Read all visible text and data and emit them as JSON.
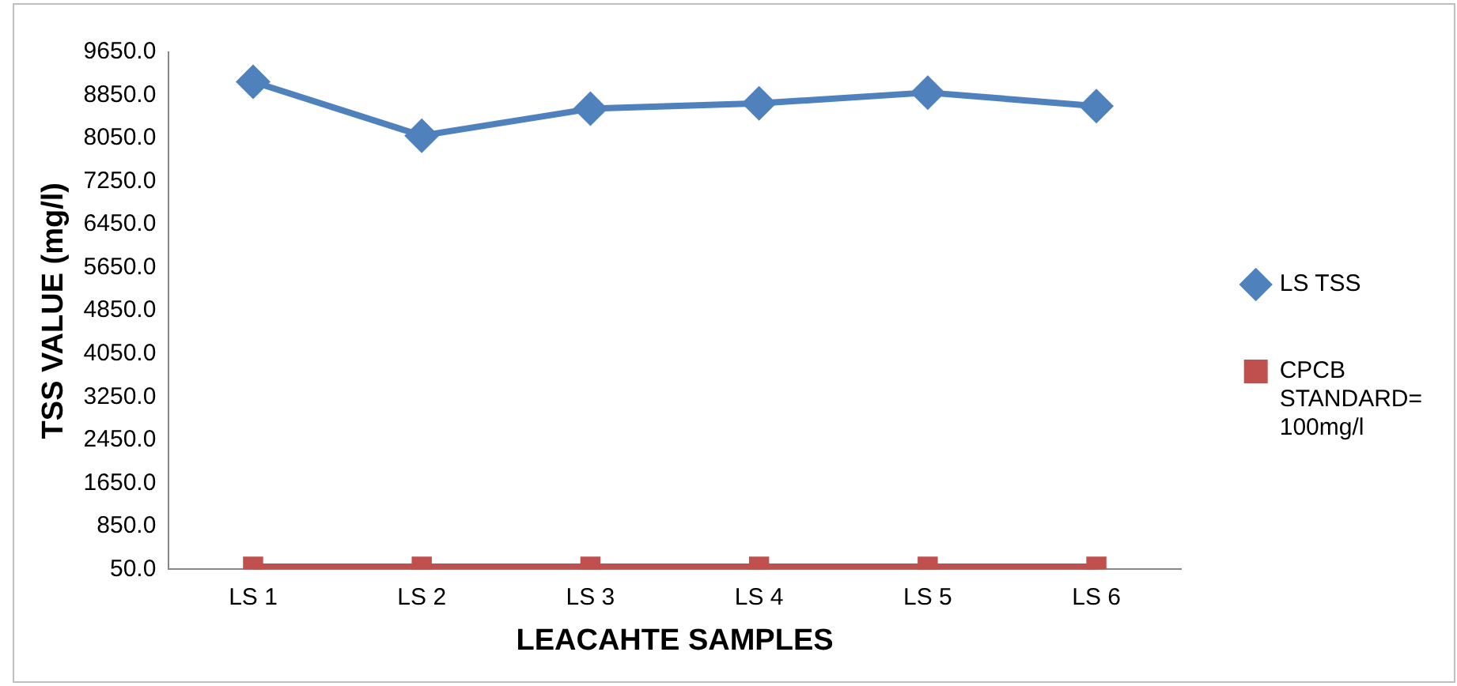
{
  "chart_data": {
    "type": "line",
    "xlabel": "LEACAHTE SAMPLES",
    "ylabel": "TSS VALUE (mg/l)",
    "categories": [
      "LS 1",
      "LS 2",
      "LS 3",
      "LS 4",
      "LS 5",
      "LS 6"
    ],
    "series": [
      {
        "name": "LS TSS",
        "color": "#4f81bd",
        "marker": "diamond",
        "values": [
          9100,
          8100,
          8600,
          8700,
          8900,
          8650
        ]
      },
      {
        "name": "CPCB STANDARD= 100mg/l",
        "color": "#c0504d",
        "marker": "square",
        "values": [
          100,
          100,
          100,
          100,
          100,
          100
        ]
      }
    ],
    "ylim": [
      50,
      9650
    ],
    "yticks": [
      {
        "value": 50,
        "label": "50.0"
      },
      {
        "value": 850,
        "label": "850.0"
      },
      {
        "value": 1650,
        "label": "1650.0"
      },
      {
        "value": 2450,
        "label": "2450.0"
      },
      {
        "value": 3250,
        "label": "3250.0"
      },
      {
        "value": 4050,
        "label": "4050.0"
      },
      {
        "value": 4850,
        "label": "4850.0"
      },
      {
        "value": 5650,
        "label": "5650.0"
      },
      {
        "value": 6450,
        "label": "6450.0"
      },
      {
        "value": 7250,
        "label": "7250.0"
      },
      {
        "value": 8050,
        "label": "8050.0"
      },
      {
        "value": 8850,
        "label": "8850.0"
      },
      {
        "value": 9650,
        "label": "9650.0"
      }
    ],
    "grid": false,
    "legend": "right",
    "line_style": "solid"
  }
}
